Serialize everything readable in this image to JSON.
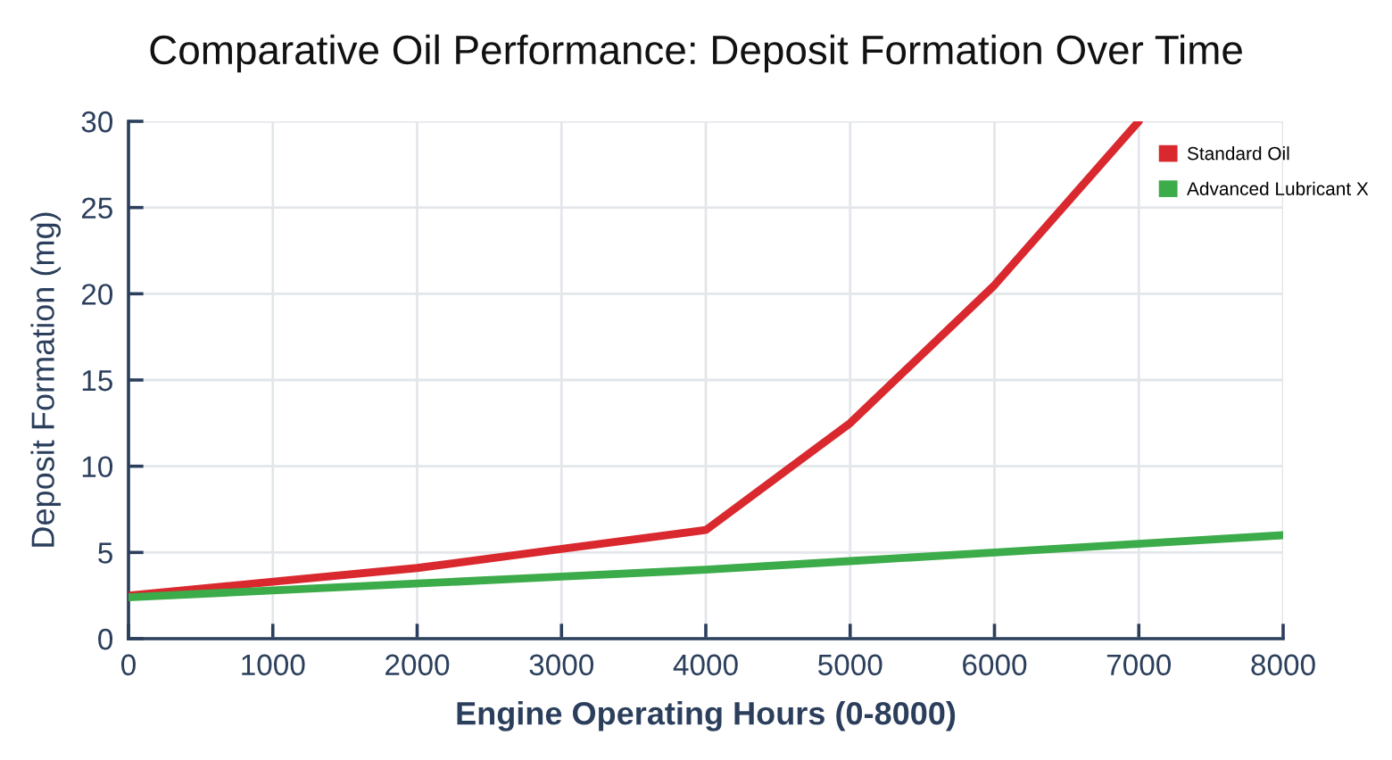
{
  "chart_data": {
    "type": "line",
    "title": "Comparative Oil Performance: Deposit Formation Over Time",
    "xlabel": "Engine Operating Hours (0-8000)",
    "ylabel": "Deposit Formation (mg)",
    "series": [
      {
        "name": "Standard Oil",
        "color": "#d9282e",
        "x": [
          0,
          1000,
          2000,
          3000,
          4000,
          5000,
          6000,
          7000
        ],
        "values": [
          2.5,
          3.3,
          4.1,
          5.2,
          6.3,
          12.5,
          20.5,
          30
        ]
      },
      {
        "name": "Advanced Lubricant X",
        "color": "#3cab4a",
        "x": [
          0,
          1000,
          2000,
          3000,
          4000,
          5000,
          6000,
          7000,
          8000
        ],
        "values": [
          2.4,
          2.8,
          3.2,
          3.6,
          4.0,
          4.5,
          5.0,
          5.5,
          6.0
        ]
      }
    ],
    "xlim": [
      0,
      8000
    ],
    "xticks": [
      0,
      1000,
      2000,
      3000,
      4000,
      5000,
      6000,
      7000,
      8000
    ],
    "ylim": [
      0,
      30
    ],
    "yticks": [
      0,
      5,
      10,
      15,
      20,
      25,
      30
    ],
    "grid": true,
    "legend": "top right",
    "marker": "none",
    "line_style": "solid"
  }
}
